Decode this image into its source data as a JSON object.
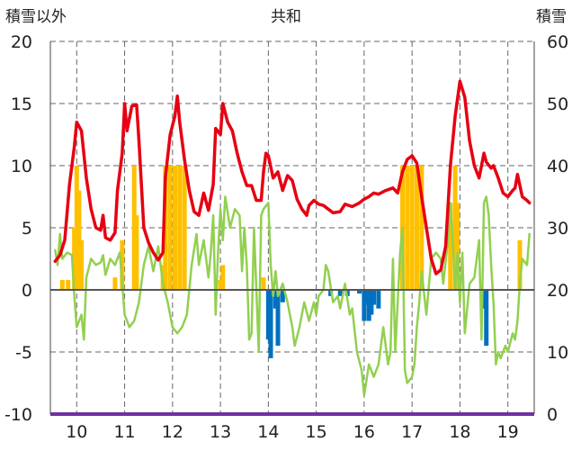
{
  "chart_data": {
    "type": "line",
    "title": "共和",
    "left_axis_label": "積雪以外",
    "right_axis_label": "積雪",
    "left_ylim": [
      -10,
      20
    ],
    "left_ticks": [
      "-10",
      "-5",
      "0",
      "5",
      "10",
      "15",
      "20"
    ],
    "right_ylim": [
      0,
      60
    ],
    "right_ticks": [
      "0",
      "10",
      "20",
      "30",
      "40",
      "50",
      "60"
    ],
    "x_categories": [
      "10",
      "11",
      "12",
      "13",
      "14",
      "15",
      "16",
      "17",
      "18",
      "19"
    ],
    "grid": "dashed",
    "colors": {
      "red_series": "#e60012",
      "green_series": "#92d050",
      "snow_positive": "#ffc000",
      "snow_negative": "#0070c0",
      "bottom_line": "#7030a0",
      "zero_line": "#555555"
    },
    "series": [
      {
        "axis": "left",
        "color": "#e60012",
        "points": [
          [
            9.55,
            2.3
          ],
          [
            9.65,
            2.8
          ],
          [
            9.75,
            4.0
          ],
          [
            9.85,
            8.5
          ],
          [
            9.95,
            11.5
          ],
          [
            10.0,
            13.5
          ],
          [
            10.1,
            12.8
          ],
          [
            10.2,
            9.0
          ],
          [
            10.3,
            6.5
          ],
          [
            10.4,
            5.0
          ],
          [
            10.5,
            4.8
          ],
          [
            10.55,
            6.0
          ],
          [
            10.6,
            4.2
          ],
          [
            10.7,
            4.0
          ],
          [
            10.8,
            4.6
          ],
          [
            10.85,
            8.0
          ],
          [
            10.95,
            11.0
          ],
          [
            11.0,
            15.0
          ],
          [
            11.05,
            12.8
          ],
          [
            11.15,
            14.8
          ],
          [
            11.25,
            14.9
          ],
          [
            11.3,
            12.0
          ],
          [
            11.4,
            5.0
          ],
          [
            11.5,
            3.8
          ],
          [
            11.6,
            3.0
          ],
          [
            11.7,
            2.4
          ],
          [
            11.8,
            3.0
          ],
          [
            11.85,
            9.0
          ],
          [
            11.95,
            12.5
          ],
          [
            12.05,
            14.0
          ],
          [
            12.1,
            15.6
          ],
          [
            12.15,
            13.5
          ],
          [
            12.25,
            10.5
          ],
          [
            12.35,
            8.0
          ],
          [
            12.45,
            6.3
          ],
          [
            12.55,
            6.0
          ],
          [
            12.65,
            7.8
          ],
          [
            12.75,
            6.4
          ],
          [
            12.85,
            8.5
          ],
          [
            12.9,
            13.0
          ],
          [
            13.0,
            12.5
          ],
          [
            13.05,
            15.0
          ],
          [
            13.15,
            13.5
          ],
          [
            13.25,
            12.8
          ],
          [
            13.35,
            11.0
          ],
          [
            13.45,
            9.5
          ],
          [
            13.55,
            8.4
          ],
          [
            13.65,
            8.4
          ],
          [
            13.75,
            7.2
          ],
          [
            13.85,
            7.2
          ],
          [
            13.9,
            9.5
          ],
          [
            13.95,
            11.0
          ],
          [
            14.0,
            10.8
          ],
          [
            14.1,
            9.0
          ],
          [
            14.2,
            9.5
          ],
          [
            14.3,
            8.0
          ],
          [
            14.4,
            9.2
          ],
          [
            14.5,
            8.8
          ],
          [
            14.6,
            7.3
          ],
          [
            14.7,
            6.5
          ],
          [
            14.8,
            6.0
          ],
          [
            14.85,
            6.8
          ],
          [
            14.95,
            7.2
          ],
          [
            15.05,
            6.9
          ],
          [
            15.15,
            6.8
          ],
          [
            15.25,
            6.5
          ],
          [
            15.35,
            6.2
          ],
          [
            15.5,
            6.3
          ],
          [
            15.6,
            6.9
          ],
          [
            15.75,
            6.7
          ],
          [
            15.9,
            7.0
          ],
          [
            16.0,
            7.3
          ],
          [
            16.1,
            7.5
          ],
          [
            16.2,
            7.8
          ],
          [
            16.3,
            7.7
          ],
          [
            16.45,
            8.0
          ],
          [
            16.6,
            8.2
          ],
          [
            16.7,
            7.8
          ],
          [
            16.8,
            9.5
          ],
          [
            16.9,
            10.5
          ],
          [
            17.0,
            10.8
          ],
          [
            17.1,
            10.2
          ],
          [
            17.2,
            7.5
          ],
          [
            17.3,
            5.0
          ],
          [
            17.4,
            2.5
          ],
          [
            17.5,
            1.3
          ],
          [
            17.6,
            1.6
          ],
          [
            17.7,
            3.5
          ],
          [
            17.8,
            10.0
          ],
          [
            17.9,
            14.0
          ],
          [
            18.0,
            16.8
          ],
          [
            18.1,
            15.5
          ],
          [
            18.2,
            12.0
          ],
          [
            18.3,
            10.0
          ],
          [
            18.4,
            9.0
          ],
          [
            18.5,
            11.0
          ],
          [
            18.55,
            10.3
          ],
          [
            18.65,
            9.8
          ],
          [
            18.7,
            10.0
          ],
          [
            18.8,
            9.0
          ],
          [
            18.9,
            7.8
          ],
          [
            19.0,
            7.5
          ],
          [
            19.1,
            8.0
          ],
          [
            19.15,
            8.2
          ],
          [
            19.2,
            9.3
          ],
          [
            19.3,
            7.5
          ],
          [
            19.4,
            7.2
          ],
          [
            19.45,
            7.0
          ]
        ]
      },
      {
        "axis": "left",
        "color": "#92d050",
        "points": [
          [
            9.55,
            3.2
          ],
          [
            9.6,
            2.0
          ],
          [
            9.65,
            4.5
          ],
          [
            9.7,
            2.5
          ],
          [
            9.8,
            3.0
          ],
          [
            9.9,
            2.8
          ],
          [
            9.95,
            -0.5
          ],
          [
            10.0,
            -3.0
          ],
          [
            10.1,
            -2.0
          ],
          [
            10.15,
            -4.0
          ],
          [
            10.2,
            1.0
          ],
          [
            10.3,
            2.5
          ],
          [
            10.4,
            2.0
          ],
          [
            10.5,
            2.2
          ],
          [
            10.55,
            2.8
          ],
          [
            10.6,
            1.2
          ],
          [
            10.7,
            2.5
          ],
          [
            10.8,
            2.0
          ],
          [
            10.9,
            3.0
          ],
          [
            11.0,
            -2.0
          ],
          [
            11.1,
            -3.0
          ],
          [
            11.2,
            -2.5
          ],
          [
            11.3,
            -1.0
          ],
          [
            11.4,
            2.0
          ],
          [
            11.5,
            3.5
          ],
          [
            11.6,
            1.5
          ],
          [
            11.7,
            3.5
          ],
          [
            11.8,
            0.5
          ],
          [
            11.9,
            -1.0
          ],
          [
            12.0,
            -3.0
          ],
          [
            12.1,
            -3.5
          ],
          [
            12.2,
            -3.0
          ],
          [
            12.3,
            -2.0
          ],
          [
            12.4,
            2.0
          ],
          [
            12.5,
            4.5
          ],
          [
            12.55,
            2.0
          ],
          [
            12.65,
            4.0
          ],
          [
            12.75,
            1.0
          ],
          [
            12.8,
            3.0
          ],
          [
            12.85,
            6.0
          ],
          [
            12.9,
            -2.0
          ],
          [
            12.95,
            3.0
          ],
          [
            13.0,
            6.5
          ],
          [
            13.05,
            4.0
          ],
          [
            13.1,
            7.5
          ],
          [
            13.2,
            5.0
          ],
          [
            13.3,
            6.5
          ],
          [
            13.4,
            6.0
          ],
          [
            13.45,
            1.5
          ],
          [
            13.5,
            5.0
          ],
          [
            13.55,
            2.0
          ],
          [
            13.6,
            -4.0
          ],
          [
            13.65,
            -3.5
          ],
          [
            13.7,
            5.0
          ],
          [
            13.8,
            -5.0
          ],
          [
            13.85,
            6.0
          ],
          [
            13.9,
            6.5
          ],
          [
            14.0,
            7.0
          ],
          [
            14.05,
            2.0
          ],
          [
            14.1,
            -0.5
          ],
          [
            14.15,
            1.5
          ],
          [
            14.2,
            -0.5
          ],
          [
            14.3,
            0.5
          ],
          [
            14.4,
            -1.0
          ],
          [
            14.5,
            -3.0
          ],
          [
            14.55,
            -4.5
          ],
          [
            14.65,
            -3.0
          ],
          [
            14.75,
            -1.0
          ],
          [
            14.85,
            -2.5
          ],
          [
            14.95,
            -1.0
          ],
          [
            15.0,
            -2.0
          ],
          [
            15.05,
            -0.5
          ],
          [
            15.15,
            0.0
          ],
          [
            15.2,
            2.0
          ],
          [
            15.25,
            1.5
          ],
          [
            15.35,
            -1.0
          ],
          [
            15.45,
            -0.5
          ],
          [
            15.5,
            -1.5
          ],
          [
            15.6,
            0.5
          ],
          [
            15.7,
            -2.0
          ],
          [
            15.75,
            -1.5
          ],
          [
            15.85,
            -5.0
          ],
          [
            15.95,
            -6.5
          ],
          [
            16.0,
            -8.5
          ],
          [
            16.1,
            -6.0
          ],
          [
            16.2,
            -7.0
          ],
          [
            16.3,
            -6.0
          ],
          [
            16.4,
            -3.0
          ],
          [
            16.5,
            -6.0
          ],
          [
            16.55,
            -5.0
          ],
          [
            16.6,
            2.5
          ],
          [
            16.65,
            -5.0
          ],
          [
            16.75,
            3.0
          ],
          [
            16.8,
            5.0
          ],
          [
            16.85,
            -6.5
          ],
          [
            16.9,
            -7.5
          ],
          [
            17.0,
            -7.0
          ],
          [
            17.05,
            -6.0
          ],
          [
            17.1,
            -3.0
          ],
          [
            17.15,
            -1.0
          ],
          [
            17.2,
            1.5
          ],
          [
            17.3,
            -2.0
          ],
          [
            17.4,
            2.5
          ],
          [
            17.5,
            3.0
          ],
          [
            17.6,
            2.5
          ],
          [
            17.65,
            0.5
          ],
          [
            17.75,
            4.0
          ],
          [
            17.8,
            7.0
          ],
          [
            17.85,
            4.0
          ],
          [
            17.9,
            0.0
          ],
          [
            17.95,
            3.0
          ],
          [
            18.0,
            -1.0
          ],
          [
            18.05,
            3.0
          ],
          [
            18.1,
            -3.5
          ],
          [
            18.2,
            0.5
          ],
          [
            18.3,
            1.0
          ],
          [
            18.4,
            4.0
          ],
          [
            18.45,
            -4.0
          ],
          [
            18.5,
            7.0
          ],
          [
            18.55,
            7.5
          ],
          [
            18.6,
            6.0
          ],
          [
            18.65,
            2.0
          ],
          [
            18.7,
            -1.0
          ],
          [
            18.75,
            -6.0
          ],
          [
            18.8,
            -5.0
          ],
          [
            18.85,
            -5.5
          ],
          [
            18.95,
            -4.5
          ],
          [
            19.0,
            -5.0
          ],
          [
            19.1,
            -3.5
          ],
          [
            19.15,
            -4.0
          ],
          [
            19.2,
            -2.5
          ],
          [
            19.25,
            0.5
          ],
          [
            19.3,
            2.5
          ],
          [
            19.4,
            2.0
          ],
          [
            19.45,
            4.5
          ]
        ]
      }
    ],
    "bars": {
      "axis": "left",
      "values": [
        [
          9.7,
          0.8
        ],
        [
          9.82,
          0.8
        ],
        [
          9.95,
          5.0
        ],
        [
          10.0,
          10.0
        ],
        [
          10.05,
          8.0
        ],
        [
          10.1,
          4.0
        ],
        [
          10.8,
          1.0
        ],
        [
          10.95,
          4.0
        ],
        [
          11.2,
          10.0
        ],
        [
          11.25,
          6.0
        ],
        [
          11.8,
          2.0
        ],
        [
          11.85,
          10.0
        ],
        [
          11.95,
          10.0
        ],
        [
          12.05,
          10.0
        ],
        [
          12.15,
          10.0
        ],
        [
          12.25,
          10.0
        ],
        [
          13.0,
          0.8
        ],
        [
          13.05,
          2.0
        ],
        [
          13.9,
          1.0
        ],
        [
          14.0,
          -4.0
        ],
        [
          14.05,
          -5.5
        ],
        [
          14.15,
          -1.5
        ],
        [
          14.2,
          -4.5
        ],
        [
          14.3,
          -1.0
        ],
        [
          15.3,
          -0.5
        ],
        [
          15.5,
          -0.5
        ],
        [
          15.65,
          -0.5
        ],
        [
          15.9,
          -0.3
        ],
        [
          16.0,
          -2.5
        ],
        [
          16.05,
          -1.2
        ],
        [
          16.1,
          -2.5
        ],
        [
          16.15,
          -2.0
        ],
        [
          16.2,
          -1.2
        ],
        [
          16.3,
          -1.5
        ],
        [
          16.8,
          10.0
        ],
        [
          16.9,
          10.0
        ],
        [
          17.0,
          10.0
        ],
        [
          17.1,
          10.0
        ],
        [
          17.2,
          10.0
        ],
        [
          17.8,
          7.0
        ],
        [
          17.9,
          10.0
        ],
        [
          17.95,
          7.0
        ],
        [
          18.5,
          -1.5
        ],
        [
          18.55,
          -4.5
        ],
        [
          19.25,
          4.0
        ]
      ]
    }
  }
}
